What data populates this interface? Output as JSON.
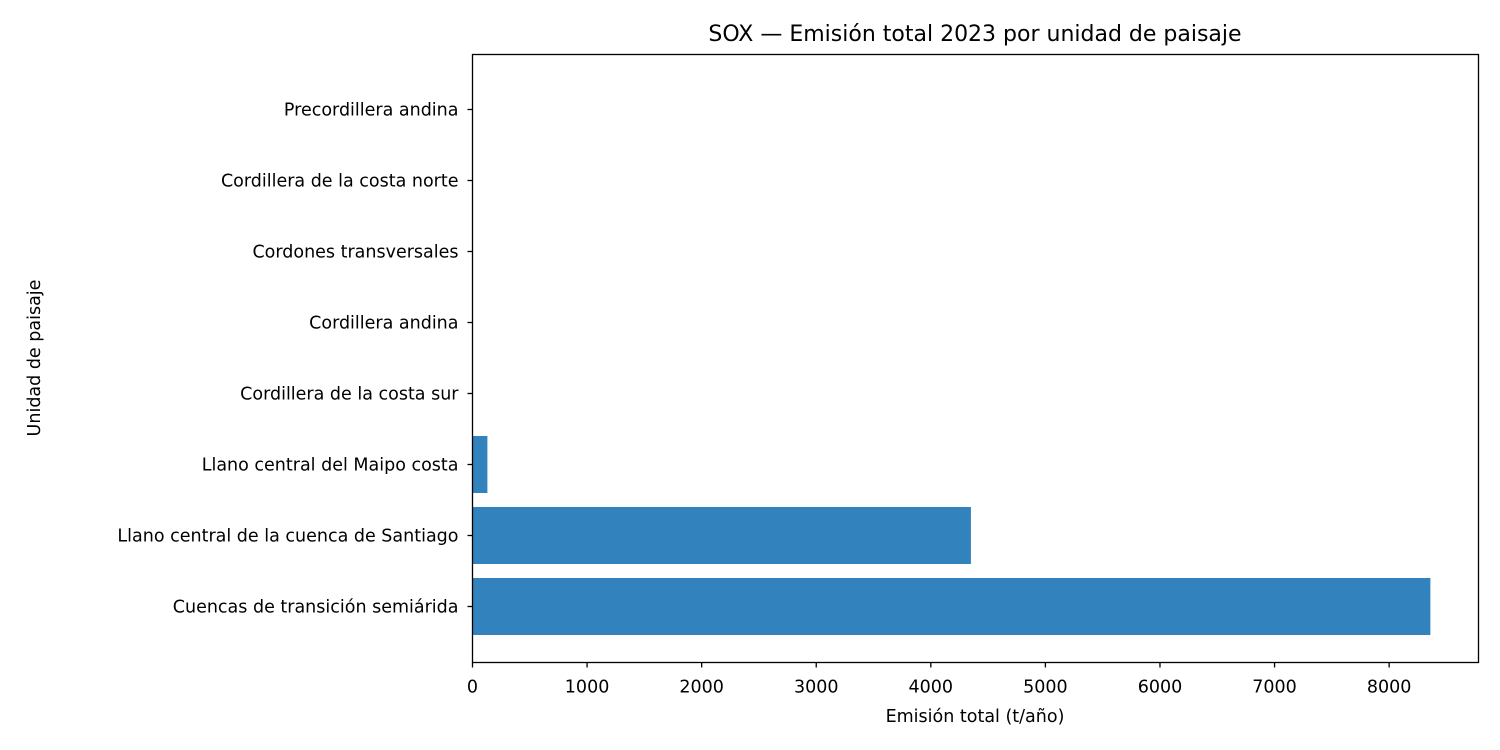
{
  "chart_data": {
    "type": "bar",
    "orientation": "horizontal",
    "title": "SOX — Emisión total 2023 por unidad de paisaje",
    "xlabel": "Emisión total (t/año)",
    "ylabel": "Unidad de paisaje",
    "categories": [
      "Cuencas de transición semiárida",
      "Llano central de la cuenca de Santiago",
      "Llano central del Maipo costa",
      "Cordillera de la costa sur",
      "Cordillera andina",
      "Cordones transversales",
      "Cordillera de la costa norte",
      "Precordillera andina"
    ],
    "values": [
      8360,
      4350,
      130,
      0,
      0,
      0,
      0,
      0
    ],
    "xlim": [
      0,
      8780
    ],
    "xticks": [
      0,
      1000,
      2000,
      3000,
      4000,
      5000,
      6000,
      7000,
      8000
    ],
    "bar_color": "#3182bd",
    "grid": false
  }
}
